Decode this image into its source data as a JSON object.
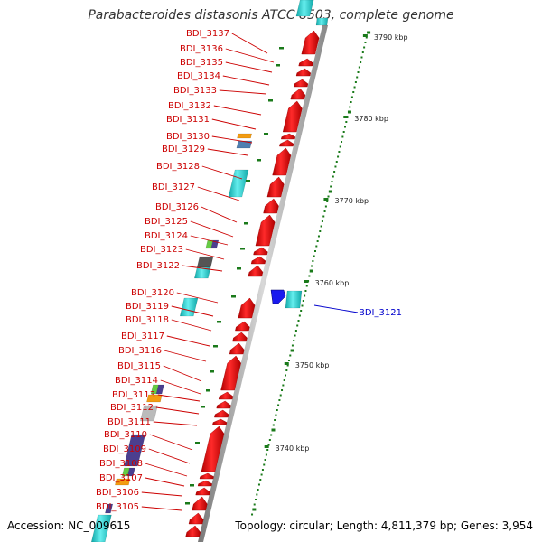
{
  "title": "Parabacteroides distasonis ATCC 8503, complete genome",
  "footer": {
    "accession": "Accession: NC_009615",
    "summary": "Topology: circular; Length: 4,811,379 bp; Genes: 3,954"
  },
  "scale_labels": [
    "3790 kbp",
    "3780 kbp",
    "3770 kbp",
    "3760 kbp",
    "3750 kbp",
    "3740 kbp"
  ],
  "gene_labels": [
    "BDI_3137",
    "BDI_3136",
    "BDI_3135",
    "BDI_3134",
    "BDI_3133",
    "BDI_3132",
    "BDI_3131",
    "BDI_3130",
    "BDI_3129",
    "BDI_3128",
    "BDI_3127",
    "BDI_3126",
    "BDI_3125",
    "BDI_3124",
    "BDI_3123",
    "BDI_3122",
    "BDI_3120",
    "BDI_3119",
    "BDI_3118",
    "BDI_3117",
    "BDI_3116",
    "BDI_3115",
    "BDI_3114",
    "BDI_3113",
    "BDI_3112",
    "BDI_3111",
    "BDI_3110",
    "BDI_3109",
    "BDI_3108",
    "BDI_3107",
    "BDI_3106",
    "BDI_3105"
  ],
  "highlighted_gene": "BDI_3121",
  "colors": {
    "label": "#cc0000",
    "highlight": "#0000cc",
    "gene_red": "#ff0000",
    "cyan": "#22cccc",
    "tick": "#1a7a1a"
  }
}
